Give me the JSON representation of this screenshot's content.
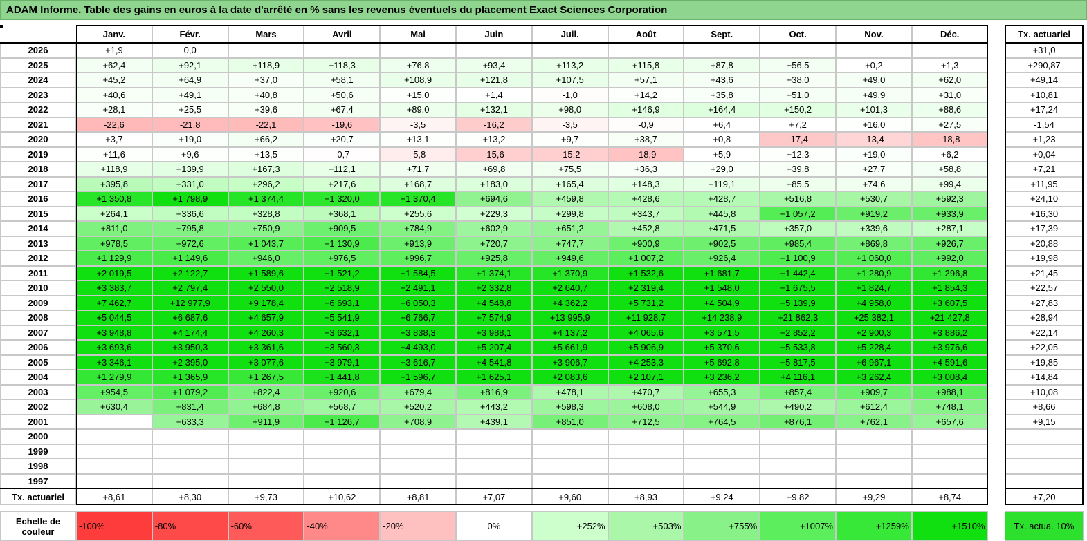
{
  "title": "ADAM Informe. Table des gains en euros à la date d'arrêté en % sans les revenus éventuels du placement Exact Sciences Corporation",
  "table": {
    "columns": [
      "Janv.",
      "Févr.",
      "Mars",
      "Avril",
      "Mai",
      "Juin",
      "Juil.",
      "Août",
      "Sept.",
      "Oct.",
      "Nov.",
      "Déc."
    ],
    "rate_header": "Tx. actuariel",
    "rows": [
      {
        "year": "2026",
        "cells": [
          "+1,9",
          "0,0",
          null,
          null,
          null,
          null,
          null,
          null,
          null,
          null,
          null,
          null
        ],
        "rate": "+31,0"
      },
      {
        "year": "2025",
        "cells": [
          "+62,4",
          "+92,1",
          "+118,9",
          "+118,3",
          "+76,8",
          "+93,4",
          "+113,2",
          "+115,8",
          "+87,8",
          "+56,5",
          "+0,2",
          "+1,3"
        ],
        "rate": "+290,87"
      },
      {
        "year": "2024",
        "cells": [
          "+45,2",
          "+64,9",
          "+37,0",
          "+58,1",
          "+108,9",
          "+121,8",
          "+107,5",
          "+57,1",
          "+43,6",
          "+38,0",
          "+49,0",
          "+62,0"
        ],
        "rate": "+49,14"
      },
      {
        "year": "2023",
        "cells": [
          "+40,6",
          "+49,1",
          "+40,8",
          "+50,6",
          "+15,0",
          "+1,4",
          "-1,0",
          "+14,2",
          "+35,8",
          "+51,0",
          "+49,9",
          "+31,0"
        ],
        "rate": "+10,81"
      },
      {
        "year": "2022",
        "cells": [
          "+28,1",
          "+25,5",
          "+39,6",
          "+67,4",
          "+89,0",
          "+132,1",
          "+98,0",
          "+146,9",
          "+164,4",
          "+150,2",
          "+101,3",
          "+88,6"
        ],
        "rate": "+17,24"
      },
      {
        "year": "2021",
        "cells": [
          "-22,6",
          "-21,8",
          "-22,1",
          "-19,6",
          "-3,5",
          "-16,2",
          "-3,5",
          "-0,9",
          "+6,4",
          "+7,2",
          "+16,0",
          "+27,5"
        ],
        "rate": "-1,54"
      },
      {
        "year": "2020",
        "cells": [
          "+3,7",
          "+19,0",
          "+66,2",
          "+20,7",
          "+13,1",
          "+13,2",
          "+9,7",
          "+38,7",
          "+0,8",
          "-17,4",
          "-13,4",
          "-18,8"
        ],
        "rate": "+1,23"
      },
      {
        "year": "2019",
        "cells": [
          "+11,6",
          "+9,6",
          "+13,5",
          "-0,7",
          "-5,8",
          "-15,6",
          "-15,2",
          "-18,9",
          "+5,9",
          "+12,3",
          "+19,0",
          "+6,2"
        ],
        "rate": "+0,04"
      },
      {
        "year": "2018",
        "cells": [
          "+118,9",
          "+139,9",
          "+167,3",
          "+112,1",
          "+71,7",
          "+69,8",
          "+75,5",
          "+36,3",
          "+29,0",
          "+39,8",
          "+27,7",
          "+58,8"
        ],
        "rate": "+7,21"
      },
      {
        "year": "2017",
        "cells": [
          "+395,8",
          "+331,0",
          "+296,2",
          "+217,6",
          "+168,7",
          "+183,0",
          "+165,4",
          "+148,3",
          "+119,1",
          "+85,5",
          "+74,6",
          "+99,4"
        ],
        "rate": "+11,95"
      },
      {
        "year": "2016",
        "cells": [
          "+1 350,8",
          "+1 798,9",
          "+1 374,4",
          "+1 320,0",
          "+1 370,4",
          "+694,6",
          "+459,8",
          "+428,6",
          "+428,7",
          "+516,8",
          "+530,7",
          "+592,3"
        ],
        "rate": "+24,10"
      },
      {
        "year": "2015",
        "cells": [
          "+264,1",
          "+336,6",
          "+328,8",
          "+368,1",
          "+255,6",
          "+229,3",
          "+299,8",
          "+343,7",
          "+445,8",
          "+1 057,2",
          "+919,2",
          "+933,9"
        ],
        "rate": "+16,30"
      },
      {
        "year": "2014",
        "cells": [
          "+811,0",
          "+795,8",
          "+750,9",
          "+909,5",
          "+784,9",
          "+602,9",
          "+651,2",
          "+452,8",
          "+471,5",
          "+357,0",
          "+339,6",
          "+287,1"
        ],
        "rate": "+17,39"
      },
      {
        "year": "2013",
        "cells": [
          "+978,5",
          "+972,6",
          "+1 043,7",
          "+1 130,9",
          "+913,9",
          "+720,7",
          "+747,7",
          "+900,9",
          "+902,5",
          "+985,4",
          "+869,8",
          "+926,7"
        ],
        "rate": "+20,88"
      },
      {
        "year": "2012",
        "cells": [
          "+1 129,9",
          "+1 149,6",
          "+946,0",
          "+976,5",
          "+996,7",
          "+925,8",
          "+949,6",
          "+1 007,2",
          "+926,4",
          "+1 100,9",
          "+1 060,0",
          "+992,0"
        ],
        "rate": "+19,98"
      },
      {
        "year": "2011",
        "cells": [
          "+2 019,5",
          "+2 122,7",
          "+1 589,6",
          "+1 521,2",
          "+1 584,5",
          "+1 374,1",
          "+1 370,9",
          "+1 532,6",
          "+1 681,7",
          "+1 442,4",
          "+1 280,9",
          "+1 296,8"
        ],
        "rate": "+21,45"
      },
      {
        "year": "2010",
        "cells": [
          "+3 383,7",
          "+2 797,4",
          "+2 550,0",
          "+2 518,9",
          "+2 491,1",
          "+2 332,8",
          "+2 640,7",
          "+2 319,4",
          "+1 548,0",
          "+1 675,5",
          "+1 824,7",
          "+1 854,3"
        ],
        "rate": "+22,57"
      },
      {
        "year": "2009",
        "cells": [
          "+7 462,7",
          "+12 977,9",
          "+9 178,4",
          "+6 693,1",
          "+6 050,3",
          "+4 548,8",
          "+4 362,2",
          "+5 731,2",
          "+4 504,9",
          "+5 139,9",
          "+4 958,0",
          "+3 607,5"
        ],
        "rate": "+27,83"
      },
      {
        "year": "2008",
        "cells": [
          "+5 044,5",
          "+6 687,6",
          "+4 657,9",
          "+5 541,9",
          "+6 766,7",
          "+7 574,9",
          "+13 995,9",
          "+11 928,7",
          "+14 238,9",
          "+21 862,3",
          "+25 382,1",
          "+21 427,8"
        ],
        "rate": "+28,94"
      },
      {
        "year": "2007",
        "cells": [
          "+3 948,8",
          "+4 174,4",
          "+4 260,3",
          "+3 632,1",
          "+3 838,3",
          "+3 988,1",
          "+4 137,2",
          "+4 065,6",
          "+3 571,5",
          "+2 852,2",
          "+2 900,3",
          "+3 886,2"
        ],
        "rate": "+22,14"
      },
      {
        "year": "2006",
        "cells": [
          "+3 693,6",
          "+3 950,3",
          "+3 361,6",
          "+3 560,3",
          "+4 493,0",
          "+5 207,4",
          "+5 661,9",
          "+5 906,9",
          "+5 370,6",
          "+5 533,8",
          "+5 228,4",
          "+3 976,6"
        ],
        "rate": "+22,05"
      },
      {
        "year": "2005",
        "cells": [
          "+3 346,1",
          "+2 395,0",
          "+3 077,6",
          "+3 979,1",
          "+3 616,7",
          "+4 541,8",
          "+3 906,7",
          "+4 253,3",
          "+5 692,8",
          "+5 817,5",
          "+6 967,1",
          "+4 591,6"
        ],
        "rate": "+19,85"
      },
      {
        "year": "2004",
        "cells": [
          "+1 279,9",
          "+1 365,9",
          "+1 267,5",
          "+1 441,8",
          "+1 596,7",
          "+1 625,1",
          "+2 083,6",
          "+2 107,1",
          "+3 236,2",
          "+4 116,1",
          "+3 262,4",
          "+3 008,4"
        ],
        "rate": "+14,84"
      },
      {
        "year": "2003",
        "cells": [
          "+954,5",
          "+1 079,2",
          "+822,4",
          "+920,6",
          "+679,4",
          "+816,9",
          "+478,1",
          "+470,7",
          "+655,3",
          "+857,4",
          "+909,7",
          "+988,1"
        ],
        "rate": "+10,08"
      },
      {
        "year": "2002",
        "cells": [
          "+630,4",
          "+831,4",
          "+684,8",
          "+568,7",
          "+520,2",
          "+443,2",
          "+598,3",
          "+608,0",
          "+544,9",
          "+490,2",
          "+612,4",
          "+748,1"
        ],
        "rate": "+8,66"
      },
      {
        "year": "2001",
        "cells": [
          null,
          "+633,3",
          "+911,9",
          "+1 126,7",
          "+708,9",
          "+439,1",
          "+851,0",
          "+712,5",
          "+764,5",
          "+876,1",
          "+762,1",
          "+657,6"
        ],
        "rate": "+9,15"
      },
      {
        "year": "2000",
        "cells": [
          null,
          null,
          null,
          null,
          null,
          null,
          null,
          null,
          null,
          null,
          null,
          null
        ],
        "rate": null
      },
      {
        "year": "1999",
        "cells": [
          null,
          null,
          null,
          null,
          null,
          null,
          null,
          null,
          null,
          null,
          null,
          null
        ],
        "rate": null
      },
      {
        "year": "1998",
        "cells": [
          null,
          null,
          null,
          null,
          null,
          null,
          null,
          null,
          null,
          null,
          null,
          null
        ],
        "rate": null
      },
      {
        "year": "1997",
        "cells": [
          null,
          null,
          null,
          null,
          null,
          null,
          null,
          null,
          null,
          null,
          null,
          null
        ],
        "rate": null
      }
    ],
    "footer": {
      "label": "Tx. actuariel",
      "cells": [
        "+8,61",
        "+8,30",
        "+9,73",
        "+10,62",
        "+8,81",
        "+7,07",
        "+9,60",
        "+8,93",
        "+9,24",
        "+9,82",
        "+9,29",
        "+8,74"
      ],
      "rate": "+7,20"
    }
  },
  "scale": {
    "label": "Echelle de couleur",
    "stops": [
      {
        "value": -100,
        "label": "-100%",
        "color": "#ff3c3c"
      },
      {
        "value": -80,
        "label": "-80%",
        "color": "#ff4a4a"
      },
      {
        "value": -60,
        "label": "-60%",
        "color": "#ff5a5a"
      },
      {
        "value": -40,
        "label": "-40%",
        "color": "#ff8888"
      },
      {
        "value": -20,
        "label": "-20%",
        "color": "#ffc0c0"
      },
      {
        "value": 0,
        "label": "0%",
        "color": "#ffffff"
      },
      {
        "value": 252,
        "label": "+252%",
        "color": "#ccffcc"
      },
      {
        "value": 503,
        "label": "+503%",
        "color": "#aaf7aa"
      },
      {
        "value": 755,
        "label": "+755%",
        "color": "#88f288"
      },
      {
        "value": 1007,
        "label": "+1007%",
        "color": "#5cee5c"
      },
      {
        "value": 1259,
        "label": "+1259%",
        "color": "#38e838"
      },
      {
        "value": 1510,
        "label": "+1510%",
        "color": "#10e010"
      }
    ],
    "rate_label": "Tx. actua. 10%",
    "rate_color": "#2ee02e"
  }
}
